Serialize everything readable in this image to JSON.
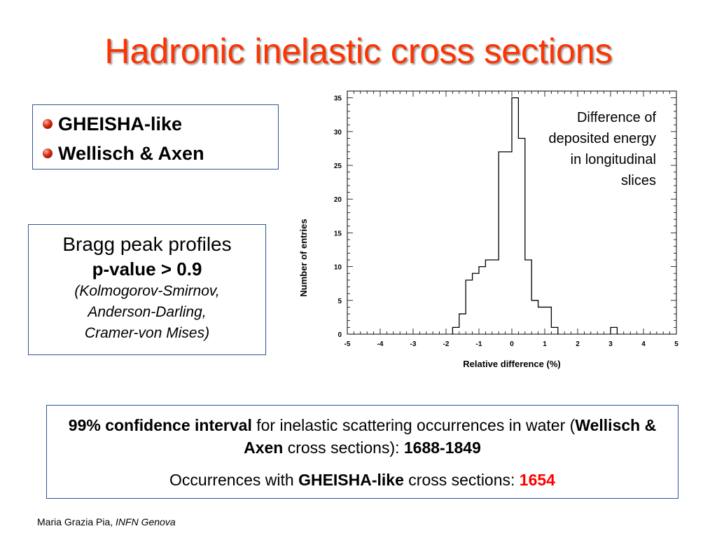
{
  "title": "Hadronic inelastic cross sections",
  "models_box": {
    "items": [
      "GHEISHA-like",
      "Wellisch & Axen"
    ]
  },
  "bragg_box": {
    "line1": "Bragg peak profiles",
    "line2_bold": "p-value",
    "line2_rest": " > 0.9",
    "tests": [
      "(Kolmogorov-Smirnov,",
      "Anderson-Darling,",
      "Cramer-von Mises)"
    ]
  },
  "ci_box": {
    "p1_bold1": "99% confidence interval",
    "p1_text1": " for inelastic scattering occurrences in water (",
    "p1_bold2": "Wellisch & Axen",
    "p1_text2": " cross sections): ",
    "p1_bold3": "1688-1849",
    "p2_text1": "Occurrences with ",
    "p2_bold": "GHEISHA-like",
    "p2_text2": " cross sections: ",
    "p2_value": "1654",
    "value_color": "#ff0000"
  },
  "footer": {
    "author": "Maria Grazia Pia, ",
    "affiliation": "INFN Genova"
  },
  "chart_data": {
    "type": "histogram",
    "annotation": [
      "Difference of",
      "deposited energy",
      "in longitudinal",
      "slices"
    ],
    "xlabel": "Relative difference (%)",
    "ylabel": "Number of entries",
    "xlim": [
      -5,
      5
    ],
    "ylim": [
      0,
      36
    ],
    "x_ticks": [
      "-5",
      "-4",
      "-3",
      "-2",
      "-1",
      "0",
      "1",
      "2",
      "3",
      "4",
      "5"
    ],
    "y_ticks": [
      "0",
      "5",
      "10",
      "15",
      "20",
      "25",
      "30",
      "35"
    ],
    "bins": [
      {
        "x0": -1.8,
        "x1": -1.6,
        "count": 1
      },
      {
        "x0": -1.6,
        "x1": -1.4,
        "count": 3
      },
      {
        "x0": -1.4,
        "x1": -1.2,
        "count": 8
      },
      {
        "x0": -1.2,
        "x1": -1.0,
        "count": 9
      },
      {
        "x0": -1.0,
        "x1": -0.8,
        "count": 10
      },
      {
        "x0": -0.8,
        "x1": -0.6,
        "count": 11
      },
      {
        "x0": -0.6,
        "x1": -0.4,
        "count": 11
      },
      {
        "x0": -0.4,
        "x1": -0.2,
        "count": 27
      },
      {
        "x0": -0.2,
        "x1": 0.0,
        "count": 27
      },
      {
        "x0": 0.0,
        "x1": 0.2,
        "count": 35
      },
      {
        "x0": 0.2,
        "x1": 0.4,
        "count": 29
      },
      {
        "x0": 0.4,
        "x1": 0.6,
        "count": 11
      },
      {
        "x0": 0.6,
        "x1": 0.8,
        "count": 5
      },
      {
        "x0": 0.8,
        "x1": 1.0,
        "count": 4
      },
      {
        "x0": 1.0,
        "x1": 1.2,
        "count": 4
      },
      {
        "x0": 1.2,
        "x1": 1.4,
        "count": 1
      },
      {
        "x0": 3.0,
        "x1": 3.2,
        "count": 1
      }
    ]
  }
}
